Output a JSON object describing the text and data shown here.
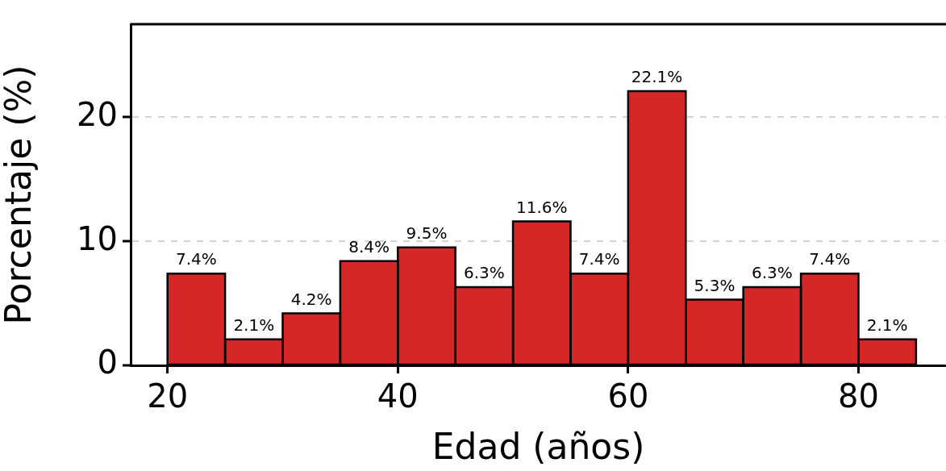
{
  "chart_data": {
    "type": "histogram",
    "xlabel": "Edad (años)",
    "ylabel": "Porcentaje (%)",
    "bins": [
      20,
      25,
      30,
      35,
      40,
      45,
      50,
      55,
      60,
      65,
      70,
      75,
      80,
      85
    ],
    "values": [
      7.4,
      2.1,
      4.2,
      8.4,
      9.5,
      6.3,
      11.6,
      7.4,
      22.1,
      5.3,
      6.3,
      7.4,
      2.1
    ],
    "value_labels": [
      "7.4%",
      "2.1%",
      "4.2%",
      "8.4%",
      "9.5%",
      "6.3%",
      "11.6%",
      "7.4%",
      "22.1%",
      "5.3%",
      "6.3%",
      "7.4%",
      "2.1%"
    ],
    "color": "#d62728",
    "xlim": [
      16.8,
      87.6
    ],
    "ylim": [
      0,
      27.5
    ],
    "xticks": [
      20,
      40,
      60,
      80
    ],
    "yticks": [
      0,
      10,
      20
    ],
    "grid": "y"
  }
}
